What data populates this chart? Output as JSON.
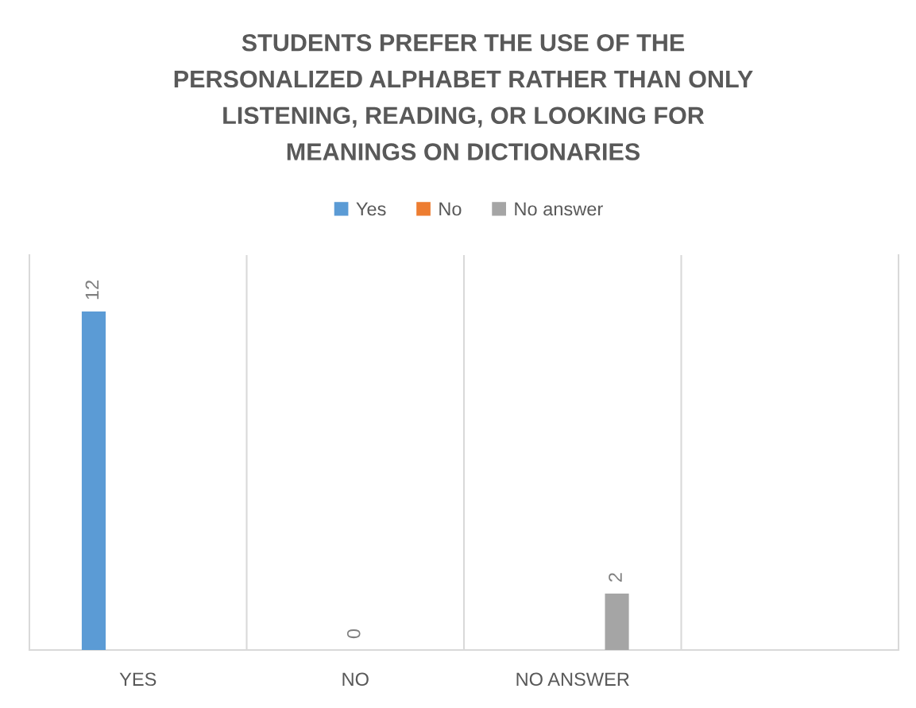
{
  "chart_data": {
    "type": "bar",
    "title": "STUDENTS PREFER THE USE OF THE\nPERSONALIZED ALPHABET RATHER THAN ONLY\nLISTENING, READING, OR LOOKING FOR\nMEANINGS ON DICTIONARIES",
    "categories": [
      "YES",
      "NO",
      "NO ANSWER",
      null
    ],
    "series": [
      {
        "name": "Yes",
        "color": "#5b9bd5",
        "values": [
          12,
          null,
          null,
          null
        ]
      },
      {
        "name": "No",
        "color": "#ed7d31",
        "values": [
          null,
          0,
          null,
          null
        ]
      },
      {
        "name": "No answer",
        "color": "#a5a5a5",
        "values": [
          null,
          null,
          2,
          null
        ]
      }
    ],
    "ylim": [
      0,
      14
    ],
    "tick_labels": "x",
    "data_labels": true,
    "grid": "x",
    "legend": "top"
  }
}
